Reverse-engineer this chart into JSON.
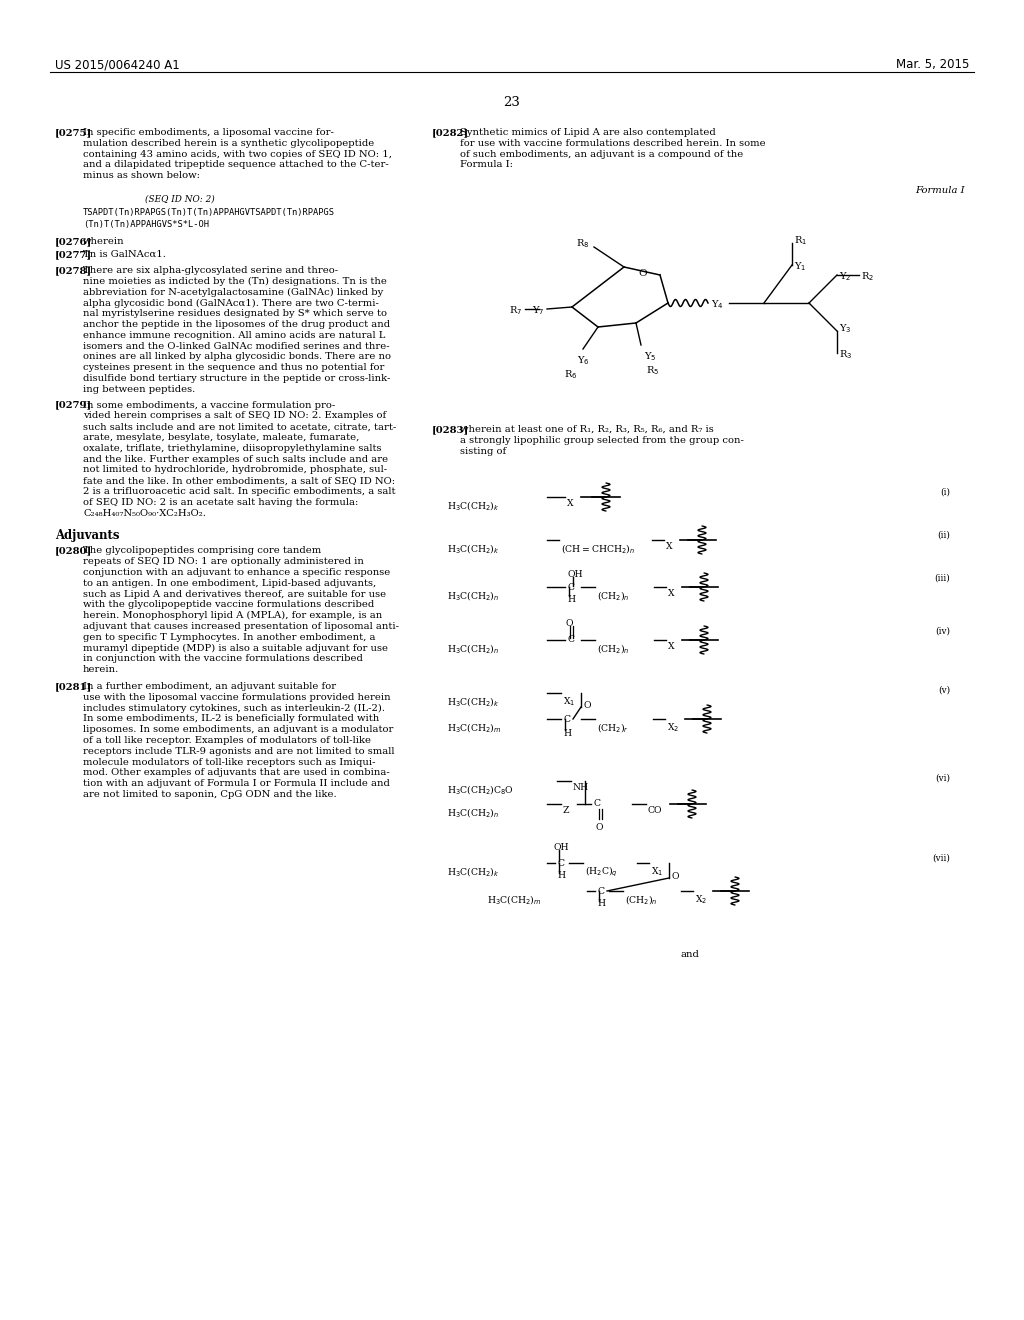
{
  "page_header_left": "US 2015/0064240 A1",
  "page_header_right": "Mar. 5, 2015",
  "page_number": "23",
  "background_color": "#ffffff",
  "text_color": "#000000",
  "font_size_body": 7.2,
  "font_size_header": 8.5
}
